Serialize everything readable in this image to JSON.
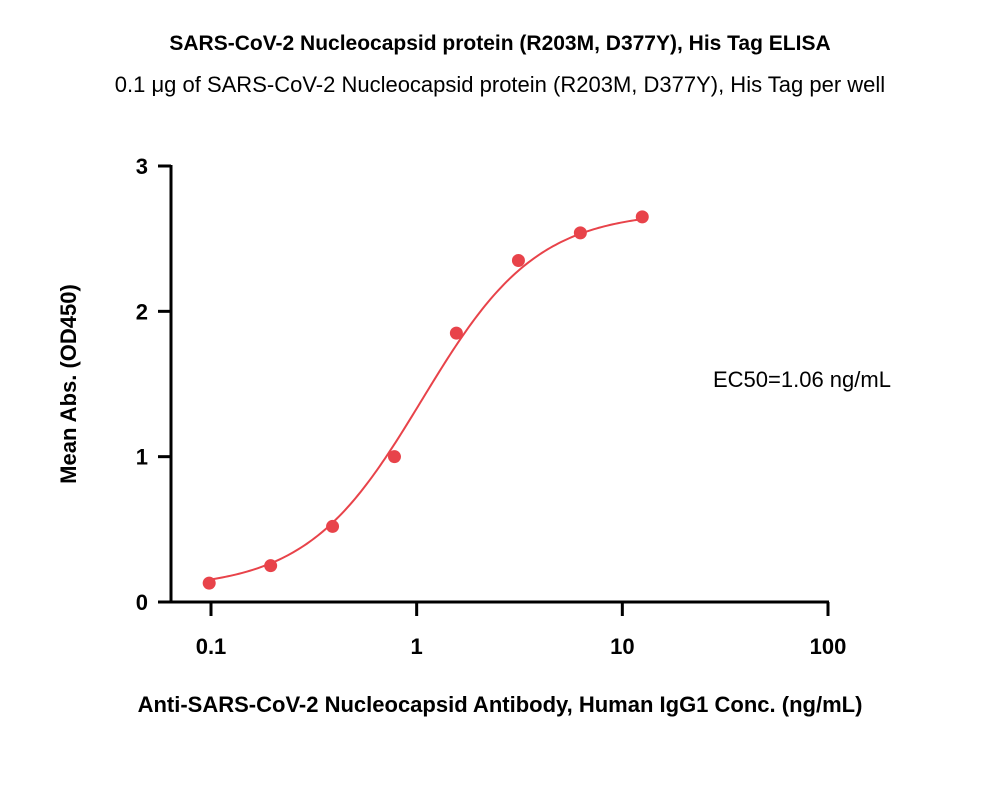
{
  "chart_data": {
    "type": "scatter",
    "title": "SARS-CoV-2 Nucleocapsid protein (R203M, D377Y), His Tag ELISA",
    "subtitle": "0.1 μg of SARS-CoV-2 Nucleocapsid protein (R203M, D377Y), His Tag per well",
    "xlabel": "Anti-SARS-CoV-2 Nucleocapsid Antibody, Human IgG1 Conc. (ng/mL)",
    "ylabel": "Mean Abs. (OD450)",
    "xscale": "log",
    "xlim": [
      0.1,
      100
    ],
    "ylim": [
      0,
      3
    ],
    "x_ticks": [
      "0.1",
      "1",
      "10",
      "100"
    ],
    "y_ticks": [
      "0",
      "1",
      "2",
      "3"
    ],
    "annotation": "EC50=1.06 ng/mL",
    "series": [
      {
        "color": "#e8434a",
        "x": [
          0.098,
          0.195,
          0.39,
          0.78,
          1.56,
          3.125,
          6.25,
          12.5
        ],
        "y": [
          0.13,
          0.25,
          0.52,
          1.0,
          1.85,
          2.35,
          2.54,
          2.65
        ]
      }
    ],
    "fit": {
      "bottom": 0.09,
      "top": 2.69,
      "ec50": 1.06,
      "hill": 1.55
    }
  }
}
